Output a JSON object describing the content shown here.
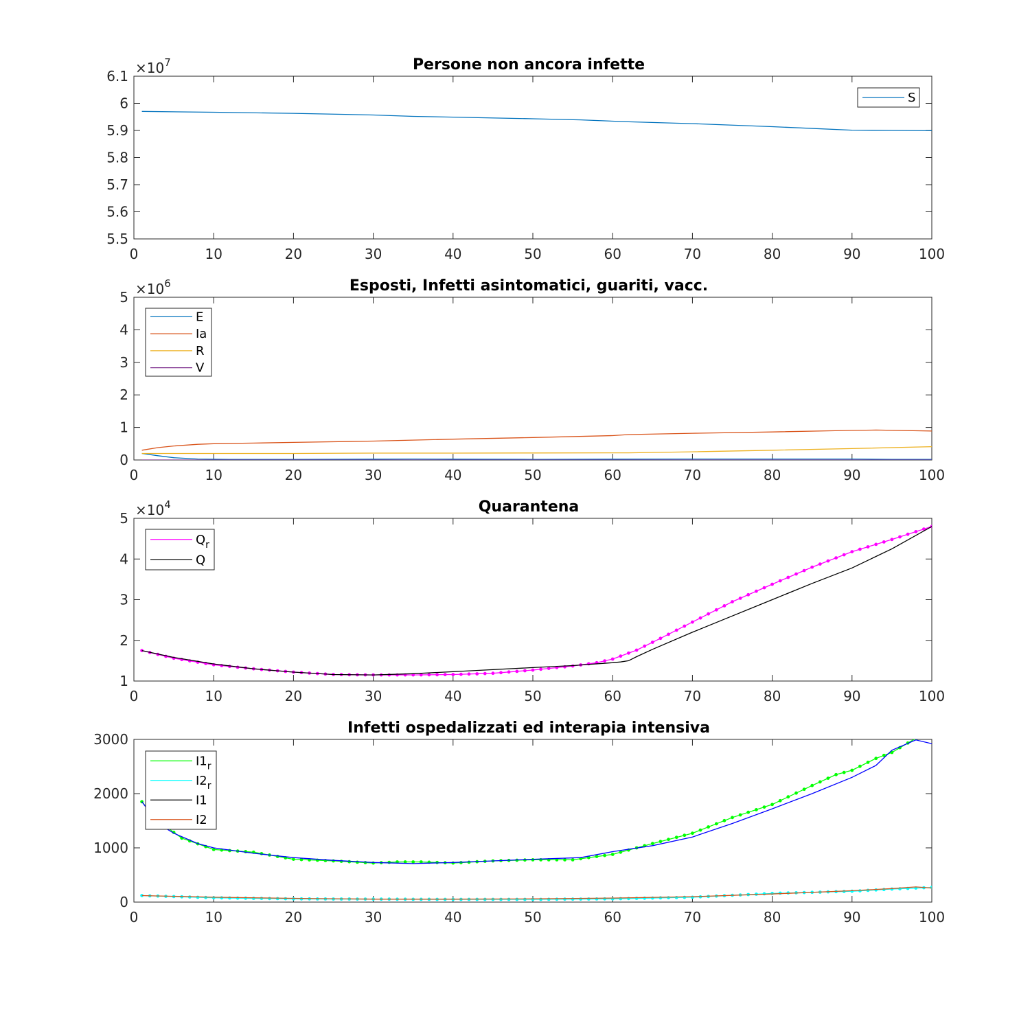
{
  "chart_data": [
    {
      "type": "line",
      "title": "Persone non ancora infette",
      "multiplier": {
        "base": "×10",
        "exponent": "7",
        "value": 10000000
      },
      "xlim": [
        0,
        100
      ],
      "ylim": [
        5.5,
        6.1
      ],
      "xticks": [
        0,
        10,
        20,
        30,
        40,
        50,
        60,
        70,
        80,
        90,
        100
      ],
      "yticks": [
        5.5,
        5.6,
        5.7,
        5.8,
        5.9,
        6,
        6.1
      ],
      "ytick_labels": [
        "5.5",
        "5.6",
        "5.7",
        "5.8",
        "5.9",
        "6",
        "6.1"
      ],
      "legend_position": "top-right",
      "series": [
        {
          "name": "S",
          "color": "#0072bd",
          "style": "line",
          "x": [
            1,
            10,
            20,
            30,
            35,
            40,
            50,
            56,
            62,
            70,
            80,
            90,
            95,
            100
          ],
          "y": [
            5.97,
            5.967,
            5.963,
            5.957,
            5.952,
            5.949,
            5.943,
            5.939,
            5.932,
            5.925,
            5.914,
            5.901,
            5.9,
            5.899
          ]
        }
      ]
    },
    {
      "type": "line",
      "title": "Esposti, Infetti asintomatici, guariti, vacc.",
      "multiplier": {
        "base": "×10",
        "exponent": "6",
        "value": 1000000
      },
      "xlim": [
        0,
        100
      ],
      "ylim": [
        0,
        5
      ],
      "xticks": [
        0,
        10,
        20,
        30,
        40,
        50,
        60,
        70,
        80,
        90,
        100
      ],
      "yticks": [
        0,
        1,
        2,
        3,
        4,
        5
      ],
      "ytick_labels": [
        "0",
        "1",
        "2",
        "3",
        "4",
        "5"
      ],
      "legend_position": "top-left",
      "series": [
        {
          "name": "E",
          "color": "#0072bd",
          "style": "line",
          "x": [
            1,
            3,
            5,
            8,
            12,
            20,
            30,
            35,
            40,
            50,
            60,
            70,
            80,
            90,
            95,
            100
          ],
          "y": [
            0.2,
            0.13,
            0.07,
            0.03,
            0.02,
            0.02,
            0.025,
            0.03,
            0.025,
            0.02,
            0.025,
            0.03,
            0.03,
            0.03,
            0.02,
            0.02
          ]
        },
        {
          "name": "Ia",
          "color": "#d95319",
          "style": "line",
          "x": [
            1,
            3,
            5,
            8,
            10,
            15,
            20,
            30,
            40,
            50,
            60,
            62,
            70,
            80,
            90,
            93,
            100
          ],
          "y": [
            0.3,
            0.38,
            0.43,
            0.48,
            0.5,
            0.52,
            0.54,
            0.58,
            0.64,
            0.69,
            0.75,
            0.78,
            0.82,
            0.86,
            0.91,
            0.92,
            0.89
          ]
        },
        {
          "name": "R",
          "color": "#edb120",
          "style": "line",
          "x": [
            1,
            5,
            10,
            20,
            30,
            40,
            50,
            60,
            62,
            70,
            80,
            90,
            100
          ],
          "y": [
            0.2,
            0.2,
            0.2,
            0.2,
            0.21,
            0.21,
            0.215,
            0.22,
            0.22,
            0.25,
            0.3,
            0.35,
            0.41
          ]
        },
        {
          "name": "V",
          "color": "#7e2f8e",
          "style": "line",
          "x": [
            1,
            100
          ],
          "y": [
            0,
            0
          ]
        }
      ]
    },
    {
      "type": "line",
      "title": "Quarantena",
      "multiplier": {
        "base": "×10",
        "exponent": "4",
        "value": 10000
      },
      "xlim": [
        0,
        100
      ],
      "ylim": [
        1,
        5
      ],
      "xticks": [
        0,
        10,
        20,
        30,
        40,
        50,
        60,
        70,
        80,
        90,
        100
      ],
      "yticks": [
        1,
        2,
        3,
        4,
        5
      ],
      "ytick_labels": [
        "1",
        "2",
        "3",
        "4",
        "5"
      ],
      "legend_position": "top-left",
      "series": [
        {
          "name": "Q",
          "subscript": "r",
          "color": "#ff00ff",
          "style": "line-dots",
          "x": [
            1,
            5,
            10,
            15,
            20,
            25,
            30,
            35,
            40,
            45,
            50,
            55,
            58,
            60,
            63,
            66,
            70,
            75,
            80,
            85,
            90,
            95,
            100
          ],
          "y": [
            1.75,
            1.56,
            1.4,
            1.3,
            1.22,
            1.16,
            1.15,
            1.15,
            1.16,
            1.19,
            1.27,
            1.37,
            1.45,
            1.54,
            1.76,
            2.05,
            2.45,
            2.95,
            3.38,
            3.8,
            4.18,
            4.48,
            4.8
          ]
        },
        {
          "name": "Q",
          "subscript": "",
          "color": "#000000",
          "style": "line",
          "x": [
            1,
            5,
            10,
            15,
            20,
            25,
            30,
            35,
            40,
            45,
            50,
            55,
            60,
            61,
            62,
            63,
            65,
            70,
            75,
            80,
            85,
            90,
            95,
            100
          ],
          "y": [
            1.75,
            1.58,
            1.42,
            1.3,
            1.22,
            1.16,
            1.15,
            1.18,
            1.23,
            1.28,
            1.33,
            1.38,
            1.45,
            1.47,
            1.5,
            1.6,
            1.78,
            2.2,
            2.6,
            3.0,
            3.4,
            3.78,
            4.25,
            4.8
          ]
        }
      ]
    },
    {
      "type": "line",
      "title": "Infetti ospedalizzati ed interapia intensiva",
      "xlim": [
        0,
        100
      ],
      "ylim": [
        0,
        3000
      ],
      "xticks": [
        0,
        10,
        20,
        30,
        40,
        50,
        60,
        70,
        80,
        90,
        100
      ],
      "yticks": [
        0,
        1000,
        2000,
        3000
      ],
      "ytick_labels": [
        "0",
        "1000",
        "2000",
        "3000"
      ],
      "legend_position": "top-left",
      "series": [
        {
          "name": "I1",
          "subscript": "r",
          "color": "#00ff00",
          "style": "line-dots",
          "x": [
            1,
            3,
            6,
            10,
            15,
            20,
            25,
            30,
            33,
            36,
            40,
            45,
            50,
            55,
            60,
            65,
            70,
            75,
            80,
            85,
            88,
            90,
            93,
            95,
            98,
            100
          ],
          "y": [
            1850,
            1500,
            1180,
            970,
            920,
            790,
            760,
            720,
            740,
            740,
            720,
            760,
            780,
            780,
            880,
            1080,
            1270,
            1560,
            1800,
            2150,
            2350,
            2430,
            2650,
            2760,
            3020,
            3050
          ]
        },
        {
          "name": "I2",
          "subscript": "r",
          "color": "#00ffff",
          "style": "line-dots",
          "x": [
            1,
            10,
            20,
            30,
            40,
            50,
            60,
            70,
            80,
            90,
            95,
            100
          ],
          "y": [
            120,
            80,
            60,
            55,
            50,
            50,
            60,
            90,
            160,
            200,
            240,
            270
          ]
        },
        {
          "name": "I1",
          "subscript": "",
          "color": "#000000",
          "style": "line",
          "x": [
            1,
            3,
            5,
            8,
            10,
            15,
            20,
            25,
            30,
            35,
            40,
            45,
            50,
            56,
            60,
            65,
            70,
            75,
            80,
            85,
            90,
            93,
            95,
            98,
            100
          ],
          "y": [
            1850,
            1450,
            1270,
            1080,
            1000,
            900,
            820,
            770,
            730,
            710,
            730,
            760,
            790,
            820,
            930,
            1040,
            1200,
            1450,
            1720,
            2000,
            2300,
            2520,
            2800,
            2990,
            2920
          ]
        },
        {
          "name": "I2",
          "subscript": "",
          "color": "#d95319",
          "style": "line",
          "x": [
            1,
            10,
            20,
            30,
            40,
            50,
            60,
            70,
            80,
            90,
            95,
            98,
            100
          ],
          "y": [
            120,
            90,
            70,
            55,
            55,
            60,
            75,
            100,
            150,
            210,
            250,
            280,
            260
          ]
        }
      ],
      "overlay_color": "#0000ff"
    }
  ]
}
